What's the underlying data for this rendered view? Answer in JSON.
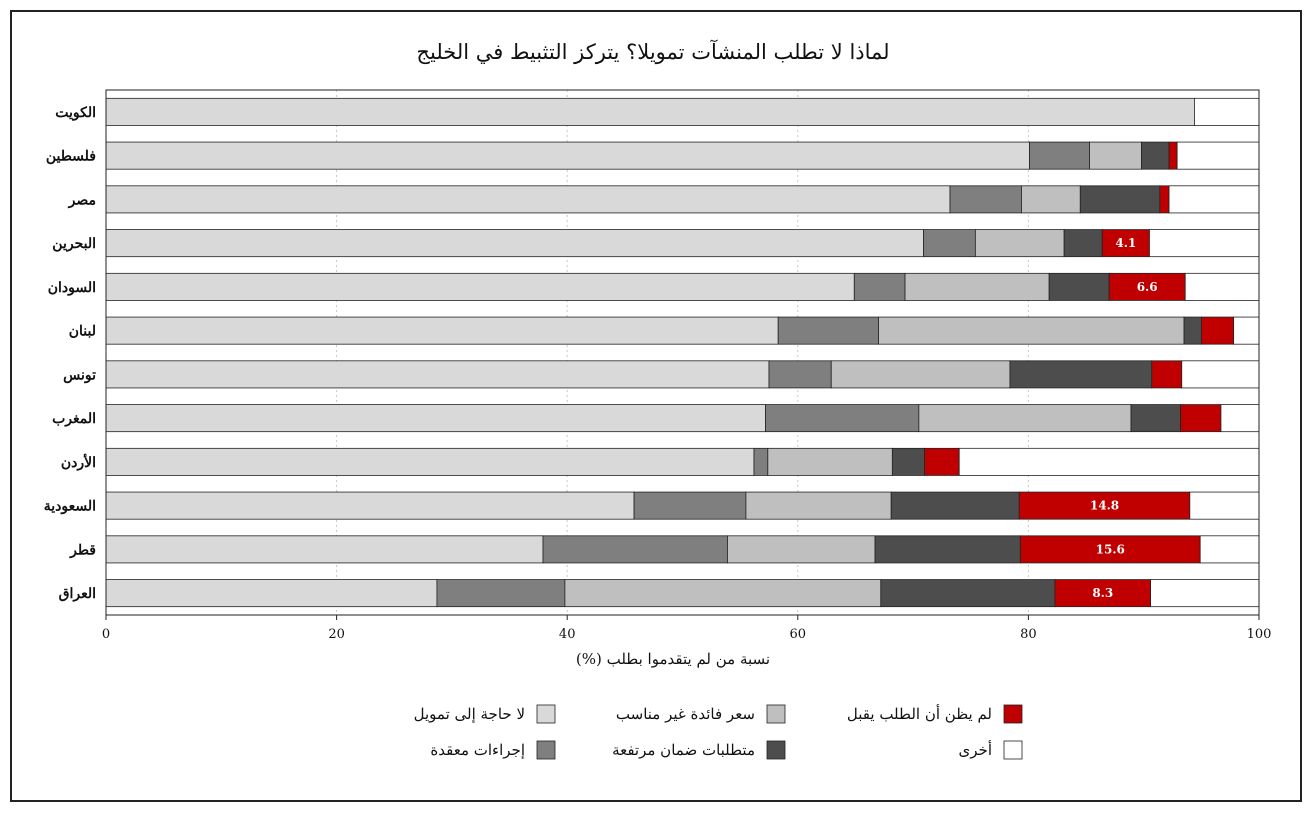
{
  "chart_data": {
    "type": "bar",
    "orientation": "horizontal",
    "stacked": true,
    "title": "لماذا لا تطلب المنشآت تمويلا؟ يتركز التثبيط في الخليج",
    "xlabel": "نسبة من لم يتقدموا بطلب (%)",
    "ylabel": "",
    "xlim": [
      0,
      100
    ],
    "x_ticks": [
      "0",
      "20",
      "40",
      "60",
      "80",
      "100"
    ],
    "grid": "vertical-dotted",
    "legend_position": "bottom",
    "categories": [
      "الكويت",
      "فلسطين",
      "مصر",
      "البحرين",
      "السودان",
      "لبنان",
      "تونس",
      "المغرب",
      "الأردن",
      "السعودية",
      "قطر",
      "العراق"
    ],
    "series": [
      {
        "name": "لا حاجة إلى تمويل",
        "color": "#d9d9d9",
        "values": [
          94.4,
          80.1,
          73.2,
          70.9,
          64.9,
          58.3,
          57.5,
          57.2,
          56.2,
          45.8,
          37.9,
          28.7
        ]
      },
      {
        "name": "إجراءات معقدة",
        "color": "#7f7f7f",
        "values": [
          0,
          5.2,
          6.2,
          4.5,
          4.4,
          8.7,
          5.4,
          13.3,
          1.2,
          9.7,
          16.0,
          11.1
        ]
      },
      {
        "name": "سعر فائدة غير مناسب",
        "color": "#bfbfbf",
        "values": [
          0,
          4.5,
          5.1,
          7.7,
          12.5,
          26.5,
          15.5,
          18.4,
          10.8,
          12.6,
          12.8,
          27.4
        ]
      },
      {
        "name": "متطلبات ضمان مرتفعة",
        "color": "#4d4d4d",
        "values": [
          0,
          2.4,
          6.9,
          3.3,
          5.2,
          1.5,
          12.3,
          4.3,
          2.8,
          11.1,
          12.6,
          15.1
        ]
      },
      {
        "name": "لم يظن أن الطلب يقبل",
        "color": "#c00000",
        "values": [
          0,
          0.7,
          0.8,
          4.1,
          6.6,
          2.8,
          2.6,
          3.5,
          3.0,
          14.8,
          15.6,
          8.3
        ]
      },
      {
        "name": "أخرى",
        "color": "#ffffff",
        "values": [
          5.6,
          7.1,
          7.8,
          9.5,
          6.4,
          2.2,
          6.7,
          3.3,
          26.0,
          6.0,
          5.1,
          9.4
        ]
      }
    ],
    "data_labels": [
      "",
      "",
      "",
      "4.1",
      "6.6",
      "",
      "",
      "",
      "",
      "14.8",
      "15.6",
      "8.3"
    ]
  }
}
